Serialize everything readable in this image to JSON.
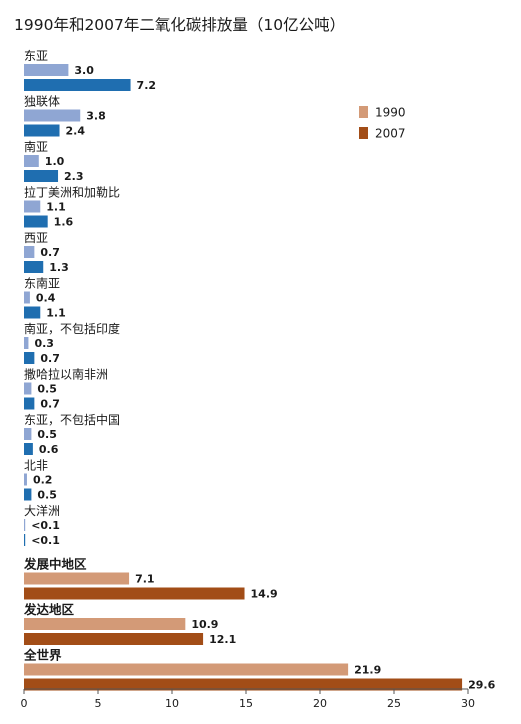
{
  "chart_data": {
    "type": "bar",
    "orientation": "horizontal",
    "title": "1990年和2007年二氧化碳排放量（10亿公吨）",
    "legend": {
      "placement": "top-right",
      "entries": [
        {
          "label": "1990",
          "note": "lighter shade"
        },
        {
          "label": "2007",
          "note": "darker shade"
        }
      ]
    },
    "colors": {
      "region_1990": "#8fa6d3",
      "region_2007": "#1f6eb0",
      "aggregate_1990": "#d39a77",
      "aggregate_2007": "#a24d17",
      "legend_1990": "#d39a77",
      "legend_2007": "#a24d17"
    },
    "xlim": [
      0,
      30
    ],
    "xticks": [
      0,
      5,
      10,
      15,
      20,
      25,
      30
    ],
    "grid": false,
    "categories": [
      {
        "label": "东亚",
        "group": "region",
        "v1990": 3.0,
        "v2007": 7.2,
        "l1990": "3.0",
        "l2007": "7.2"
      },
      {
        "label": "独联体",
        "group": "region",
        "v1990": 3.8,
        "v2007": 2.4,
        "l1990": "3.8",
        "l2007": "2.4"
      },
      {
        "label": "南亚",
        "group": "region",
        "v1990": 1.0,
        "v2007": 2.3,
        "l1990": "1.0",
        "l2007": "2.3"
      },
      {
        "label": "拉丁美洲和加勒比",
        "group": "region",
        "v1990": 1.1,
        "v2007": 1.6,
        "l1990": "1.1",
        "l2007": "1.6"
      },
      {
        "label": "西亚",
        "group": "region",
        "v1990": 0.7,
        "v2007": 1.3,
        "l1990": "0.7",
        "l2007": "1.3"
      },
      {
        "label": "东南亚",
        "group": "region",
        "v1990": 0.4,
        "v2007": 1.1,
        "l1990": "0.4",
        "l2007": "1.1"
      },
      {
        "label": "南亚，不包括印度",
        "group": "region",
        "v1990": 0.3,
        "v2007": 0.7,
        "l1990": "0.3",
        "l2007": "0.7"
      },
      {
        "label": "撒哈拉以南非洲",
        "group": "region",
        "v1990": 0.5,
        "v2007": 0.7,
        "l1990": "0.5",
        "l2007": "0.7"
      },
      {
        "label": "东亚，不包括中国",
        "group": "region",
        "v1990": 0.5,
        "v2007": 0.6,
        "l1990": "0.5",
        "l2007": "0.6"
      },
      {
        "label": "北非",
        "group": "region",
        "v1990": 0.2,
        "v2007": 0.5,
        "l1990": "0.2",
        "l2007": "0.5"
      },
      {
        "label": "大洋洲",
        "group": "region",
        "v1990": 0.05,
        "v2007": 0.05,
        "l1990": "<0.1",
        "l2007": "<0.1"
      },
      {
        "label": "发展中地区",
        "group": "aggregate",
        "v1990": 7.1,
        "v2007": 14.9,
        "l1990": "7.1",
        "l2007": "14.9"
      },
      {
        "label": "发达地区",
        "group": "aggregate",
        "v1990": 10.9,
        "v2007": 12.1,
        "l1990": "10.9",
        "l2007": "12.1"
      },
      {
        "label": "全世界",
        "group": "aggregate",
        "v1990": 21.9,
        "v2007": 29.6,
        "l1990": "21.9",
        "l2007": "29.6"
      }
    ]
  }
}
